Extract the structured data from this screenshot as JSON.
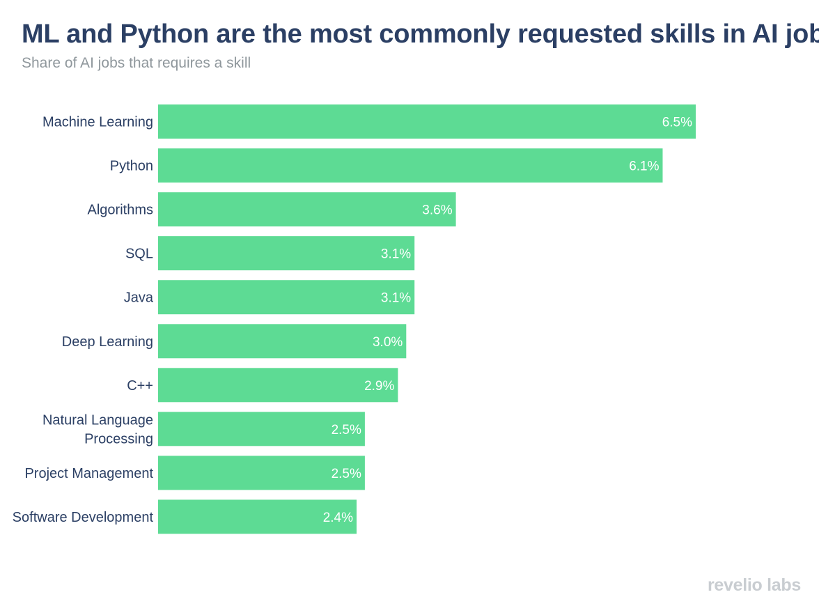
{
  "title": "ML and Python are the most commonly requested skills in AI jobs",
  "subtitle": "Share of AI jobs that requires a skill",
  "brand": "revelio labs",
  "colors": {
    "bar": "#5ddb94",
    "title": "#2b3f64",
    "subtitle": "#8f979c",
    "label": "#2b3f64",
    "value_label": "#ffffff",
    "brand": "#c9cdd1"
  },
  "chart_data": {
    "type": "bar",
    "orientation": "horizontal",
    "title": "ML and Python are the most commonly requested skills in AI jobs",
    "subtitle": "Share of AI jobs that requires a skill",
    "xlabel": "",
    "ylabel": "",
    "unit": "%",
    "xlim": [
      0,
      6.5
    ],
    "grid": false,
    "legend": "none",
    "categories": [
      "Machine Learning",
      "Python",
      "Algorithms",
      "SQL",
      "Java",
      "Deep Learning",
      "C++",
      "Natural Language Processing",
      "Project Management",
      "Software Development"
    ],
    "category_lines": [
      [
        "Machine Learning"
      ],
      [
        "Python"
      ],
      [
        "Algorithms"
      ],
      [
        "SQL"
      ],
      [
        "Java"
      ],
      [
        "Deep Learning"
      ],
      [
        "C++"
      ],
      [
        "Natural Language",
        "Processing"
      ],
      [
        "Project Management"
      ],
      [
        "Software Development"
      ]
    ],
    "values": [
      6.5,
      6.1,
      3.6,
      3.1,
      3.1,
      3.0,
      2.9,
      2.5,
      2.5,
      2.4
    ],
    "value_labels": [
      "6.5%",
      "6.1%",
      "3.6%",
      "3.1%",
      "3.1%",
      "3.0%",
      "2.9%",
      "2.5%",
      "2.5%",
      "2.4%"
    ]
  }
}
